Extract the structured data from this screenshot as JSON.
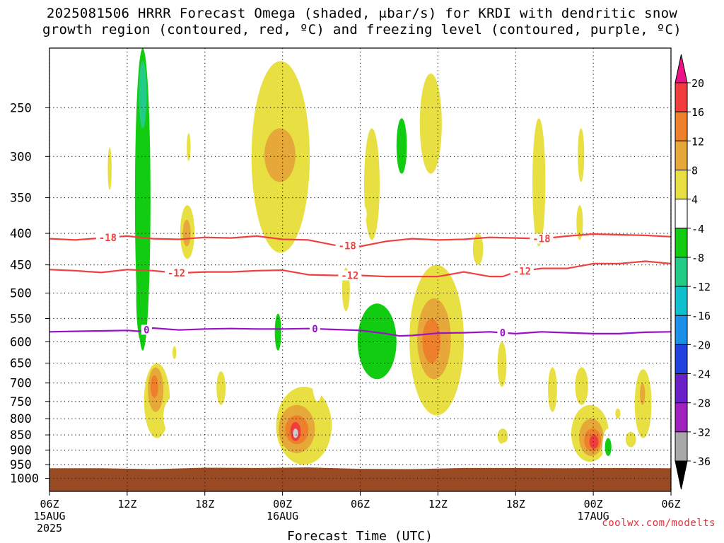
{
  "title": {
    "line1": "2025081506 HRRR Forecast Omega (shaded, μbar/s) for KRDI with dendritic snow",
    "line2": "growth region (contoured, red, ºC) and freezing level (contoured, purple, ºC)"
  },
  "credit": "coolwx.com/modelts",
  "chart_data": {
    "type": "heatmap",
    "title": "2025081506 HRRR Forecast Omega (shaded, μbar/s) for KRDI with dendritic snow growth region (contoured, red, ºC) and freezing level (contoured, purple, ºC)",
    "xlabel": "Forecast Time (UTC)",
    "ylabel": "",
    "x_range_hours": [
      0,
      48
    ],
    "x_ticks": [
      {
        "h": 0,
        "label": "06Z",
        "sub": "15AUG",
        "sub2": "2025"
      },
      {
        "h": 6,
        "label": "12Z"
      },
      {
        "h": 12,
        "label": "18Z"
      },
      {
        "h": 18,
        "label": "00Z",
        "sub": "16AUG"
      },
      {
        "h": 24,
        "label": "06Z"
      },
      {
        "h": 30,
        "label": "12Z"
      },
      {
        "h": 36,
        "label": "18Z"
      },
      {
        "h": 42,
        "label": "00Z",
        "sub": "17AUG"
      },
      {
        "h": 48,
        "label": "06Z"
      }
    ],
    "y_axis": "pressure (mb), log scale, top 200 bottom 1050",
    "y_ticks": [
      250,
      300,
      350,
      400,
      450,
      500,
      550,
      600,
      650,
      700,
      750,
      800,
      850,
      900,
      950,
      1000
    ],
    "grid": "dotted",
    "colorbar": {
      "labels": [
        20,
        16,
        12,
        8,
        4,
        -4,
        -8,
        -12,
        -16,
        -20,
        -24,
        -28,
        -32,
        -36
      ],
      "bins": [
        {
          "from": 16,
          "to": 20,
          "color": "#f03c3c"
        },
        {
          "from": 12,
          "to": 16,
          "color": "#ee7f2b"
        },
        {
          "from": 8,
          "to": 12,
          "color": "#e7a83a"
        },
        {
          "from": 4,
          "to": 8,
          "color": "#e8e043"
        },
        {
          "from": -4,
          "to": 4,
          "color": "#ffffff"
        },
        {
          "from": -8,
          "to": -4,
          "color": "#11cc11"
        },
        {
          "from": -12,
          "to": -8,
          "color": "#22cc88"
        },
        {
          "from": -16,
          "to": -12,
          "color": "#10c0cc"
        },
        {
          "from": -20,
          "to": -16,
          "color": "#1a90e8"
        },
        {
          "from": -24,
          "to": -20,
          "color": "#2040e0"
        },
        {
          "from": -28,
          "to": -24,
          "color": "#6a20c8"
        },
        {
          "from": -32,
          "to": -28,
          "color": "#a020c0"
        },
        {
          "from": -36,
          "to": -32,
          "color": "#a8a8a8"
        }
      ],
      "top_arrow_color": "#ee1188",
      "bottom_arrow_color": "#000000"
    },
    "ground_color": "#9a4a22",
    "ground_p": [
      963,
      963,
      966,
      961,
      962,
      960,
      965,
      966,
      962,
      962,
      963,
      962,
      963
    ],
    "contours": [
      {
        "name": "dgz_-18",
        "value": -18,
        "color": "#f04040",
        "points": [
          [
            0,
            408
          ],
          [
            2,
            410
          ],
          [
            4,
            407
          ],
          [
            6,
            404
          ],
          [
            8,
            408
          ],
          [
            10,
            409
          ],
          [
            12,
            406
          ],
          [
            14,
            407
          ],
          [
            16,
            404
          ],
          [
            18,
            409
          ],
          [
            20,
            410
          ],
          [
            22,
            418
          ],
          [
            24,
            420
          ],
          [
            26,
            412
          ],
          [
            28,
            408
          ],
          [
            30,
            410
          ],
          [
            32,
            409
          ],
          [
            34,
            406
          ],
          [
            36,
            407
          ],
          [
            38,
            408
          ],
          [
            40,
            404
          ],
          [
            42,
            401
          ],
          [
            44,
            402
          ],
          [
            46,
            403
          ],
          [
            48,
            405
          ]
        ],
        "labels": [
          {
            "h": 4.5,
            "text": "-18"
          },
          {
            "h": 23.0,
            "text": "-18"
          },
          {
            "h": 38.0,
            "text": "-18"
          }
        ]
      },
      {
        "name": "dgz_-12",
        "value": -12,
        "color": "#f04040",
        "points": [
          [
            0,
            458
          ],
          [
            2,
            460
          ],
          [
            4,
            463
          ],
          [
            6,
            458
          ],
          [
            8,
            460
          ],
          [
            10,
            464
          ],
          [
            12,
            462
          ],
          [
            14,
            462
          ],
          [
            16,
            460
          ],
          [
            18,
            459
          ],
          [
            20,
            467
          ],
          [
            22,
            468
          ],
          [
            24,
            468
          ],
          [
            26,
            470
          ],
          [
            28,
            470
          ],
          [
            30,
            470
          ],
          [
            32,
            462
          ],
          [
            34,
            470
          ],
          [
            35,
            470
          ],
          [
            36,
            462
          ],
          [
            38,
            456
          ],
          [
            40,
            456
          ],
          [
            42,
            448
          ],
          [
            44,
            448
          ],
          [
            46,
            444
          ],
          [
            48,
            448
          ]
        ],
        "labels": [
          {
            "h": 9.8,
            "text": "-12"
          },
          {
            "h": 23.2,
            "text": "-12"
          },
          {
            "h": 36.5,
            "text": "-12"
          }
        ]
      },
      {
        "name": "freezing_level",
        "value": 0,
        "color": "#9a10c8",
        "points": [
          [
            0,
            578
          ],
          [
            2,
            577
          ],
          [
            4,
            576
          ],
          [
            6,
            575
          ],
          [
            7,
            577
          ],
          [
            8,
            570
          ],
          [
            10,
            574
          ],
          [
            12,
            572
          ],
          [
            14,
            571
          ],
          [
            16,
            572
          ],
          [
            18,
            572
          ],
          [
            20,
            571
          ],
          [
            22,
            573
          ],
          [
            24,
            575
          ],
          [
            26,
            582
          ],
          [
            27,
            587
          ],
          [
            28,
            586
          ],
          [
            30,
            581
          ],
          [
            32,
            580
          ],
          [
            34,
            578
          ],
          [
            36,
            582
          ],
          [
            38,
            578
          ],
          [
            40,
            580
          ],
          [
            42,
            582
          ],
          [
            44,
            582
          ],
          [
            46,
            579
          ],
          [
            48,
            578
          ]
        ],
        "labels": [
          {
            "h": 7.5,
            "text": "0"
          },
          {
            "h": 20.5,
            "text": "0"
          },
          {
            "h": 35.0,
            "text": "0"
          }
        ]
      }
    ],
    "omega_regions": [
      {
        "bin": -4,
        "x0": 2.2,
        "x1": 3.2,
        "p0": 495,
        "p1": 735
      },
      {
        "bin": -4,
        "x0": 5.4,
        "x1": 8.8,
        "p0": 200,
        "p1": 660
      },
      {
        "bin": -8,
        "x0": 6.6,
        "x1": 7.8,
        "p0": 200,
        "p1": 620
      },
      {
        "bin": -12,
        "x0": 6.9,
        "x1": 7.5,
        "p0": 210,
        "p1": 270
      },
      {
        "bin": -8,
        "x0": 6.7,
        "x1": 7.5,
        "p0": 430,
        "p1": 600
      },
      {
        "bin": 4,
        "x0": 4.5,
        "x1": 4.8,
        "p0": 290,
        "p1": 340
      },
      {
        "bin": 4,
        "x0": 7.3,
        "x1": 9.3,
        "p0": 650,
        "p1": 860
      },
      {
        "bin": 8,
        "x0": 7.6,
        "x1": 8.8,
        "p0": 660,
        "p1": 780
      },
      {
        "bin": 12,
        "x0": 7.8,
        "x1": 8.4,
        "p0": 680,
        "p1": 740
      },
      {
        "bin": -4,
        "x0": 8.8,
        "x1": 10.2,
        "p0": 740,
        "p1": 850
      },
      {
        "bin": 4,
        "x0": 10.1,
        "x1": 11.2,
        "p0": 360,
        "p1": 440
      },
      {
        "bin": 8,
        "x0": 10.3,
        "x1": 10.9,
        "p0": 380,
        "p1": 420
      },
      {
        "bin": 4,
        "x0": 10.6,
        "x1": 10.9,
        "p0": 275,
        "p1": 305
      },
      {
        "bin": -4,
        "x0": 10.0,
        "x1": 11.3,
        "p0": 510,
        "p1": 610
      },
      {
        "bin": 4,
        "x0": 12.9,
        "x1": 13.6,
        "p0": 670,
        "p1": 760
      },
      {
        "bin": 4,
        "x0": 9.5,
        "x1": 9.8,
        "p0": 610,
        "p1": 640
      },
      {
        "bin": 4,
        "x0": 15.6,
        "x1": 20.1,
        "p0": 210,
        "p1": 430
      },
      {
        "bin": 8,
        "x0": 16.6,
        "x1": 19.0,
        "p0": 270,
        "p1": 330
      },
      {
        "bin": -4,
        "x0": 17.2,
        "x1": 18.8,
        "p0": 500,
        "p1": 740
      },
      {
        "bin": -8,
        "x0": 17.4,
        "x1": 17.9,
        "p0": 540,
        "p1": 620
      },
      {
        "bin": 4,
        "x0": 17.5,
        "x1": 21.8,
        "p0": 710,
        "p1": 950
      },
      {
        "bin": 8,
        "x0": 17.7,
        "x1": 20.5,
        "p0": 760,
        "p1": 910
      },
      {
        "bin": 12,
        "x0": 18.2,
        "x1": 20.0,
        "p0": 790,
        "p1": 880
      },
      {
        "bin": 16,
        "x0": 18.6,
        "x1": 19.4,
        "p0": 810,
        "p1": 870
      },
      {
        "bin": 20,
        "x0": 18.8,
        "x1": 19.2,
        "p0": 830,
        "p1": 860
      },
      {
        "bin": -4,
        "x0": 17.0,
        "x1": 17.5,
        "p0": 860,
        "p1": 930
      },
      {
        "bin": -4,
        "x0": 20.2,
        "x1": 21.2,
        "p0": 575,
        "p1": 750
      },
      {
        "bin": -4,
        "x0": 21.7,
        "x1": 22.7,
        "p0": 460,
        "p1": 760
      },
      {
        "bin": 4,
        "x0": 22.6,
        "x1": 23.2,
        "p0": 455,
        "p1": 535
      },
      {
        "bin": -4,
        "x0": 23.4,
        "x1": 28.7,
        "p0": 480,
        "p1": 820
      },
      {
        "bin": -8,
        "x0": 23.8,
        "x1": 26.8,
        "p0": 520,
        "p1": 690
      },
      {
        "bin": 4,
        "x0": 24.3,
        "x1": 25.5,
        "p0": 270,
        "p1": 410
      },
      {
        "bin": -4,
        "x0": 23.9,
        "x1": 24.5,
        "p0": 360,
        "p1": 385
      },
      {
        "bin": -4,
        "x0": 26.4,
        "x1": 28.8,
        "p0": 225,
        "p1": 410
      },
      {
        "bin": -8,
        "x0": 26.8,
        "x1": 27.6,
        "p0": 260,
        "p1": 320
      },
      {
        "bin": 4,
        "x0": 27.8,
        "x1": 32.0,
        "p0": 450,
        "p1": 790
      },
      {
        "bin": 8,
        "x0": 28.4,
        "x1": 31.0,
        "p0": 510,
        "p1": 690
      },
      {
        "bin": 12,
        "x0": 28.8,
        "x1": 30.2,
        "p0": 550,
        "p1": 650
      },
      {
        "bin": 4,
        "x0": 28.6,
        "x1": 30.3,
        "p0": 220,
        "p1": 320
      },
      {
        "bin": -4,
        "x0": 33.1,
        "x1": 34.6,
        "p0": 420,
        "p1": 620
      },
      {
        "bin": 4,
        "x0": 32.7,
        "x1": 33.5,
        "p0": 400,
        "p1": 450
      },
      {
        "bin": -4,
        "x0": 33.0,
        "x1": 34.0,
        "p0": 220,
        "p1": 300
      },
      {
        "bin": -4,
        "x0": 32.7,
        "x1": 33.4,
        "p0": 850,
        "p1": 940
      },
      {
        "bin": 4,
        "x0": 34.6,
        "x1": 35.3,
        "p0": 600,
        "p1": 710
      },
      {
        "bin": 4,
        "x0": 34.6,
        "x1": 35.4,
        "p0": 830,
        "p1": 880
      },
      {
        "bin": -4,
        "x0": 34.8,
        "x1": 36.6,
        "p0": 870,
        "p1": 905
      },
      {
        "bin": 4,
        "x0": 37.3,
        "x1": 38.3,
        "p0": 260,
        "p1": 420
      },
      {
        "bin": 4,
        "x0": 38.5,
        "x1": 39.2,
        "p0": 660,
        "p1": 780
      },
      {
        "bin": -4,
        "x0": 38.5,
        "x1": 39.4,
        "p0": 890,
        "p1": 930
      },
      {
        "bin": 4,
        "x0": 40.6,
        "x1": 41.6,
        "p0": 660,
        "p1": 760
      },
      {
        "bin": 4,
        "x0": 40.3,
        "x1": 43.2,
        "p0": 760,
        "p1": 940
      },
      {
        "bin": 8,
        "x0": 40.9,
        "x1": 42.8,
        "p0": 800,
        "p1": 920
      },
      {
        "bin": 12,
        "x0": 41.3,
        "x1": 42.6,
        "p0": 830,
        "p1": 905
      },
      {
        "bin": 16,
        "x0": 41.7,
        "x1": 42.4,
        "p0": 850,
        "p1": 895
      },
      {
        "bin": -4,
        "x0": 42.7,
        "x1": 43.6,
        "p0": 830,
        "p1": 950
      },
      {
        "bin": -8,
        "x0": 42.9,
        "x1": 43.4,
        "p0": 860,
        "p1": 920
      },
      {
        "bin": 4,
        "x0": 43.7,
        "x1": 44.1,
        "p0": 770,
        "p1": 800
      },
      {
        "bin": 4,
        "x0": 44.5,
        "x1": 45.3,
        "p0": 840,
        "p1": 890
      },
      {
        "bin": 4,
        "x0": 45.2,
        "x1": 46.5,
        "p0": 665,
        "p1": 860
      },
      {
        "bin": 8,
        "x0": 45.6,
        "x1": 46.0,
        "p0": 700,
        "p1": 760
      },
      {
        "bin": -4,
        "x0": 46.5,
        "x1": 46.9,
        "p0": 365,
        "p1": 440
      },
      {
        "bin": 4,
        "x0": 40.8,
        "x1": 41.3,
        "p0": 270,
        "p1": 330
      },
      {
        "bin": 4,
        "x0": 40.7,
        "x1": 41.2,
        "p0": 360,
        "p1": 410
      }
    ]
  }
}
